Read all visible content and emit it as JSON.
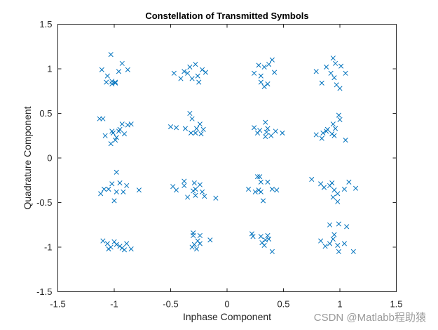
{
  "chart_data": {
    "type": "scatter",
    "title": "Constellation of Transmitted Symbols",
    "xlabel": "Inphase Component",
    "ylabel": "Quadrature Component",
    "xlim": [
      -1.5,
      1.5
    ],
    "ylim": [
      -1.5,
      1.5
    ],
    "xticks": [
      "-1.5",
      "-1",
      "-0.5",
      "0",
      "0.5",
      "1",
      "1.5"
    ],
    "yticks": [
      "-1.5",
      "-1",
      "-0.5",
      "0",
      "0.5",
      "1",
      "1.5"
    ],
    "xtick_values": [
      -1.5,
      -1,
      -0.5,
      0,
      0.5,
      1,
      1.5
    ],
    "ytick_values": [
      -1.5,
      -1,
      -0.5,
      0,
      0.5,
      1,
      1.5
    ],
    "marker": "x",
    "marker_color": "#0072bd",
    "grid": false,
    "legend": "none",
    "series": [
      {
        "points": [
          [
            -1.03,
            1.16
          ],
          [
            -1.11,
            0.99
          ],
          [
            -0.93,
            1.06
          ],
          [
            -0.88,
            0.99
          ],
          [
            -0.96,
            0.97
          ],
          [
            -1.06,
            0.92
          ],
          [
            -1.02,
            0.86
          ],
          [
            -0.99,
            0.84
          ],
          [
            -1.02,
            0.83
          ],
          [
            -0.99,
            0.85
          ],
          [
            -1.07,
            0.85
          ],
          [
            -0.47,
            0.95
          ],
          [
            -0.38,
            0.97
          ],
          [
            -0.33,
            1.02
          ],
          [
            -0.28,
            1.05
          ],
          [
            -0.22,
            0.99
          ],
          [
            -0.19,
            0.96
          ],
          [
            -0.26,
            0.92
          ],
          [
            -0.31,
            0.89
          ],
          [
            -0.41,
            0.89
          ],
          [
            -0.35,
            0.95
          ],
          [
            -0.25,
            0.85
          ],
          [
            0.24,
            0.95
          ],
          [
            0.28,
            1.04
          ],
          [
            0.33,
            1.02
          ],
          [
            0.4,
            1.1
          ],
          [
            0.37,
            1.05
          ],
          [
            0.42,
            0.96
          ],
          [
            0.3,
            0.92
          ],
          [
            0.3,
            0.85
          ],
          [
            0.33,
            0.8
          ],
          [
            0.36,
            0.83
          ],
          [
            0.94,
            1.12
          ],
          [
            0.96,
            1.06
          ],
          [
            0.88,
            1.02
          ],
          [
            1.01,
            1.03
          ],
          [
            0.79,
            0.97
          ],
          [
            0.92,
            0.95
          ],
          [
            1.05,
            0.95
          ],
          [
            0.95,
            0.9
          ],
          [
            0.84,
            0.84
          ],
          [
            0.97,
            0.82
          ],
          [
            1.0,
            0.78
          ],
          [
            -1.13,
            0.44
          ],
          [
            -1.1,
            0.44
          ],
          [
            -0.93,
            0.38
          ],
          [
            -0.88,
            0.37
          ],
          [
            -0.85,
            0.38
          ],
          [
            -1.02,
            0.3
          ],
          [
            -0.96,
            0.3
          ],
          [
            -1.01,
            0.28
          ],
          [
            -1.08,
            0.25
          ],
          [
            -0.98,
            0.23
          ],
          [
            -0.91,
            0.27
          ],
          [
            -0.95,
            0.32
          ],
          [
            -1.03,
            0.16
          ],
          [
            -0.99,
            0.2
          ],
          [
            -0.5,
            0.35
          ],
          [
            -0.45,
            0.34
          ],
          [
            -0.33,
            0.5
          ],
          [
            -0.31,
            0.44
          ],
          [
            -0.24,
            0.38
          ],
          [
            -0.21,
            0.32
          ],
          [
            -0.28,
            0.28
          ],
          [
            -0.32,
            0.28
          ],
          [
            -0.23,
            0.27
          ],
          [
            -0.37,
            0.33
          ],
          [
            -0.27,
            0.33
          ],
          [
            0.24,
            0.34
          ],
          [
            0.34,
            0.4
          ],
          [
            0.29,
            0.31
          ],
          [
            0.35,
            0.29
          ],
          [
            0.43,
            0.3
          ],
          [
            0.49,
            0.28
          ],
          [
            0.39,
            0.25
          ],
          [
            0.34,
            0.24
          ],
          [
            0.27,
            0.28
          ],
          [
            0.36,
            0.33
          ],
          [
            0.99,
            0.48
          ],
          [
            1.0,
            0.43
          ],
          [
            0.94,
            0.38
          ],
          [
            0.96,
            0.33
          ],
          [
            0.89,
            0.32
          ],
          [
            0.85,
            0.28
          ],
          [
            0.79,
            0.26
          ],
          [
            0.84,
            0.22
          ],
          [
            1.05,
            0.2
          ],
          [
            0.95,
            0.25
          ],
          [
            0.88,
            0.3
          ],
          [
            0.93,
            0.27
          ],
          [
            -0.98,
            -0.16
          ],
          [
            -1.02,
            -0.29
          ],
          [
            -0.95,
            -0.28
          ],
          [
            -1.05,
            -0.35
          ],
          [
            -1.09,
            -0.35
          ],
          [
            -0.92,
            -0.38
          ],
          [
            -0.98,
            -0.38
          ],
          [
            -1.12,
            -0.4
          ],
          [
            -0.78,
            -0.36
          ],
          [
            -1.0,
            -0.48
          ],
          [
            -0.89,
            -0.31
          ],
          [
            -0.48,
            -0.32
          ],
          [
            -0.45,
            -0.36
          ],
          [
            -0.38,
            -0.26
          ],
          [
            -0.38,
            -0.31
          ],
          [
            -0.29,
            -0.28
          ],
          [
            -0.24,
            -0.3
          ],
          [
            -0.28,
            -0.35
          ],
          [
            -0.22,
            -0.38
          ],
          [
            -0.3,
            -0.37
          ],
          [
            -0.28,
            -0.42
          ],
          [
            -0.35,
            -0.44
          ],
          [
            -0.2,
            -0.43
          ],
          [
            -0.1,
            -0.45
          ],
          [
            0.19,
            -0.35
          ],
          [
            0.27,
            -0.21
          ],
          [
            0.29,
            -0.21
          ],
          [
            0.3,
            -0.27
          ],
          [
            0.36,
            -0.27
          ],
          [
            0.25,
            -0.38
          ],
          [
            0.3,
            -0.38
          ],
          [
            0.4,
            -0.35
          ],
          [
            0.44,
            -0.36
          ],
          [
            0.32,
            -0.48
          ],
          [
            0.28,
            -0.36
          ],
          [
            0.75,
            -0.24
          ],
          [
            0.83,
            -0.29
          ],
          [
            0.91,
            -0.31
          ],
          [
            0.93,
            -0.28
          ],
          [
            0.86,
            -0.33
          ],
          [
            0.95,
            -0.36
          ],
          [
            0.98,
            -0.4
          ],
          [
            1.04,
            -0.35
          ],
          [
            1.14,
            -0.34
          ],
          [
            0.98,
            -0.49
          ],
          [
            1.08,
            -0.27
          ],
          [
            0.94,
            -0.44
          ],
          [
            -1.1,
            -0.93
          ],
          [
            -1.06,
            -0.96
          ],
          [
            -1.0,
            -0.94
          ],
          [
            -0.95,
            -0.99
          ],
          [
            -0.89,
            -0.96
          ],
          [
            -0.91,
            -1.03
          ],
          [
            -1.03,
            -1.0
          ],
          [
            -0.98,
            -0.97
          ],
          [
            -0.85,
            -1.02
          ],
          [
            -1.05,
            -1.02
          ],
          [
            -0.93,
            -1.01
          ],
          [
            -0.3,
            -0.84
          ],
          [
            -0.3,
            -0.87
          ],
          [
            -0.24,
            -0.87
          ],
          [
            -0.15,
            -0.92
          ],
          [
            -0.26,
            -0.93
          ],
          [
            -0.29,
            -0.97
          ],
          [
            -0.31,
            -1.0
          ],
          [
            -0.27,
            -1.02
          ],
          [
            -0.24,
            -0.96
          ],
          [
            0.22,
            -0.85
          ],
          [
            0.23,
            -0.88
          ],
          [
            0.3,
            -0.88
          ],
          [
            0.36,
            -0.87
          ],
          [
            0.34,
            -0.92
          ],
          [
            0.31,
            -0.95
          ],
          [
            0.33,
            -0.98
          ],
          [
            0.37,
            -0.91
          ],
          [
            0.4,
            -1.05
          ],
          [
            0.91,
            -0.75
          ],
          [
            0.99,
            -0.74
          ],
          [
            1.06,
            -0.77
          ],
          [
            0.95,
            -0.86
          ],
          [
            0.83,
            -0.93
          ],
          [
            0.91,
            -0.96
          ],
          [
            0.98,
            -0.98
          ],
          [
            1.04,
            -0.96
          ],
          [
            0.87,
            -0.99
          ],
          [
            0.99,
            -1.05
          ],
          [
            1.12,
            -1.05
          ],
          [
            0.94,
            -0.91
          ]
        ]
      }
    ]
  },
  "watermark_text": "CSDN @Matlabb程助猿"
}
